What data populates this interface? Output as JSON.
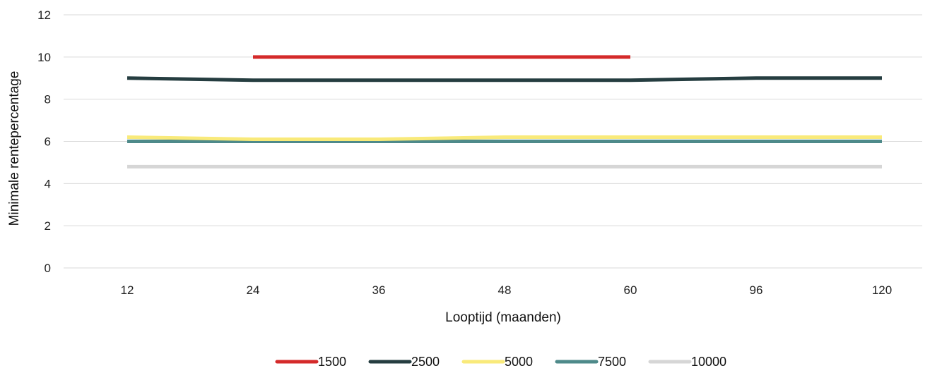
{
  "chart_data": {
    "type": "line",
    "title": "",
    "xlabel": "Looptijd (maanden)",
    "ylabel": "Minimale rentepercentage",
    "categories": [
      "12",
      "24",
      "36",
      "48",
      "60",
      "96",
      "120"
    ],
    "ylim": [
      0,
      12
    ],
    "yticks": [
      0,
      2,
      4,
      6,
      8,
      10,
      12
    ],
    "grid": true,
    "legend_position": "bottom",
    "series": [
      {
        "name": "1500",
        "color": "#d42a2a",
        "values": [
          null,
          10,
          10,
          10,
          10,
          null,
          null
        ]
      },
      {
        "name": "2500",
        "color": "#253d40",
        "values": [
          9,
          8.9,
          8.9,
          8.9,
          8.9,
          9,
          9
        ]
      },
      {
        "name": "5000",
        "color": "#f9ea7a",
        "values": [
          6.2,
          6.1,
          6.1,
          6.2,
          6.2,
          6.2,
          6.2
        ]
      },
      {
        "name": "7500",
        "color": "#4e8a8a",
        "values": [
          6,
          6,
          6,
          6,
          6,
          6,
          6
        ]
      },
      {
        "name": "10000",
        "color": "#d6d6d6",
        "values": [
          4.8,
          4.8,
          4.8,
          4.8,
          4.8,
          4.8,
          4.8
        ]
      }
    ]
  }
}
